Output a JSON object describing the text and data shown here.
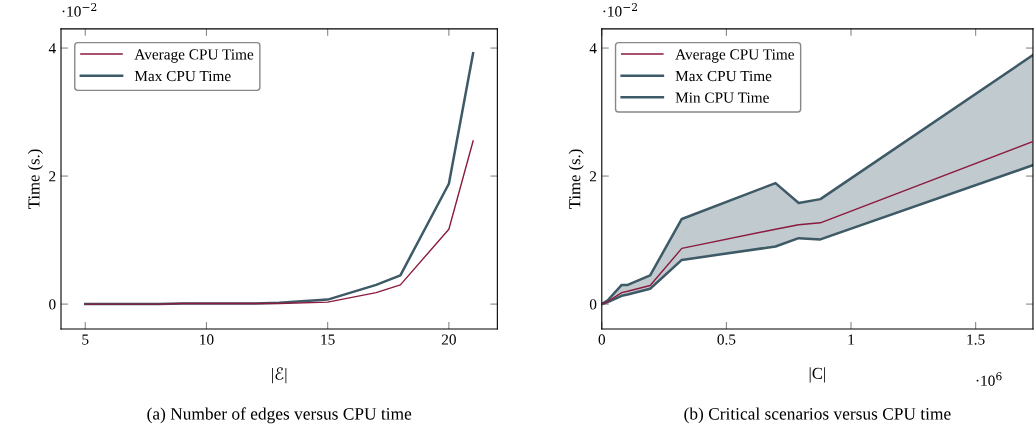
{
  "chart_data": [
    {
      "type": "line",
      "title": "(a) Number of edges versus CPU time",
      "xlabel": "|ℰ|",
      "ylabel": "Time (s.)",
      "annotations": [
        "·10$^{−2}$"
      ],
      "xlim": [
        4,
        22
      ],
      "xticks": [
        5,
        10,
        15,
        20
      ],
      "ylim": [
        -0.39,
        4.3
      ],
      "yticks": [
        0,
        2,
        4
      ],
      "legend": "top left",
      "grid": false,
      "marker": "none",
      "series": [
        {
          "name": "Average CPU Time",
          "color": "#8b1a3e",
          "x": [
            5,
            8,
            9,
            12,
            13,
            15,
            17,
            18,
            20,
            21
          ],
          "values": [
            0,
            0,
            0.01,
            0.01,
            0.01,
            0.03,
            0.18,
            0.3,
            1.17,
            2.55
          ]
        },
        {
          "name": "Max CPU Time",
          "color": "#3d5a66",
          "x": [
            5,
            8,
            9,
            12,
            13,
            15,
            17,
            18,
            20,
            21
          ],
          "values": [
            0,
            0,
            0.01,
            0.01,
            0.02,
            0.07,
            0.3,
            0.45,
            1.88,
            3.92
          ]
        }
      ]
    },
    {
      "type": "line",
      "title": "(b) Critical scenarios versus CPU time",
      "xlabel": "|C|",
      "ylabel": "Time (s.)",
      "annotations": [
        "·10$^{−2}$",
        "·10$^{6}$"
      ],
      "xlim": [
        0,
        1.73
      ],
      "xticks": [
        0,
        0.5,
        1,
        1.5
      ],
      "ylim": [
        -0.39,
        4.3
      ],
      "yticks": [
        0,
        2,
        4
      ],
      "legend": "top left",
      "grid": false,
      "marker": "none",
      "series": [
        {
          "name": "Average CPU Time",
          "color": "#8b1a3e",
          "x": [
            0,
            0.024,
            0.08,
            0.104,
            0.194,
            0.321,
            0.697,
            0.79,
            0.877,
            1.73
          ],
          "values": [
            0,
            0.04,
            0.18,
            0.2,
            0.29,
            0.87,
            1.17,
            1.24,
            1.27,
            2.54
          ],
          "lower": [
            0,
            0.03,
            0.13,
            0.15,
            0.24,
            0.69,
            0.9,
            1.03,
            1.01,
            2.17
          ],
          "upper": [
            0,
            0.06,
            0.3,
            0.3,
            0.45,
            1.33,
            1.89,
            1.58,
            1.64,
            3.89
          ]
        },
        {
          "name": "Max CPU Time",
          "color": "#3d5a66",
          "x": [
            0,
            0.024,
            0.08,
            0.104,
            0.194,
            0.321,
            0.697,
            0.79,
            0.877,
            1.73
          ],
          "values": [
            0,
            0.06,
            0.3,
            0.3,
            0.45,
            1.33,
            1.89,
            1.58,
            1.64,
            3.89
          ]
        },
        {
          "name": "Min CPU Time",
          "color": "#3d5a66",
          "x": [
            0,
            0.024,
            0.08,
            0.104,
            0.194,
            0.321,
            0.697,
            0.79,
            0.877,
            1.73
          ],
          "values": [
            0,
            0.03,
            0.13,
            0.15,
            0.24,
            0.69,
            0.9,
            1.03,
            1.01,
            2.17
          ]
        }
      ]
    }
  ]
}
